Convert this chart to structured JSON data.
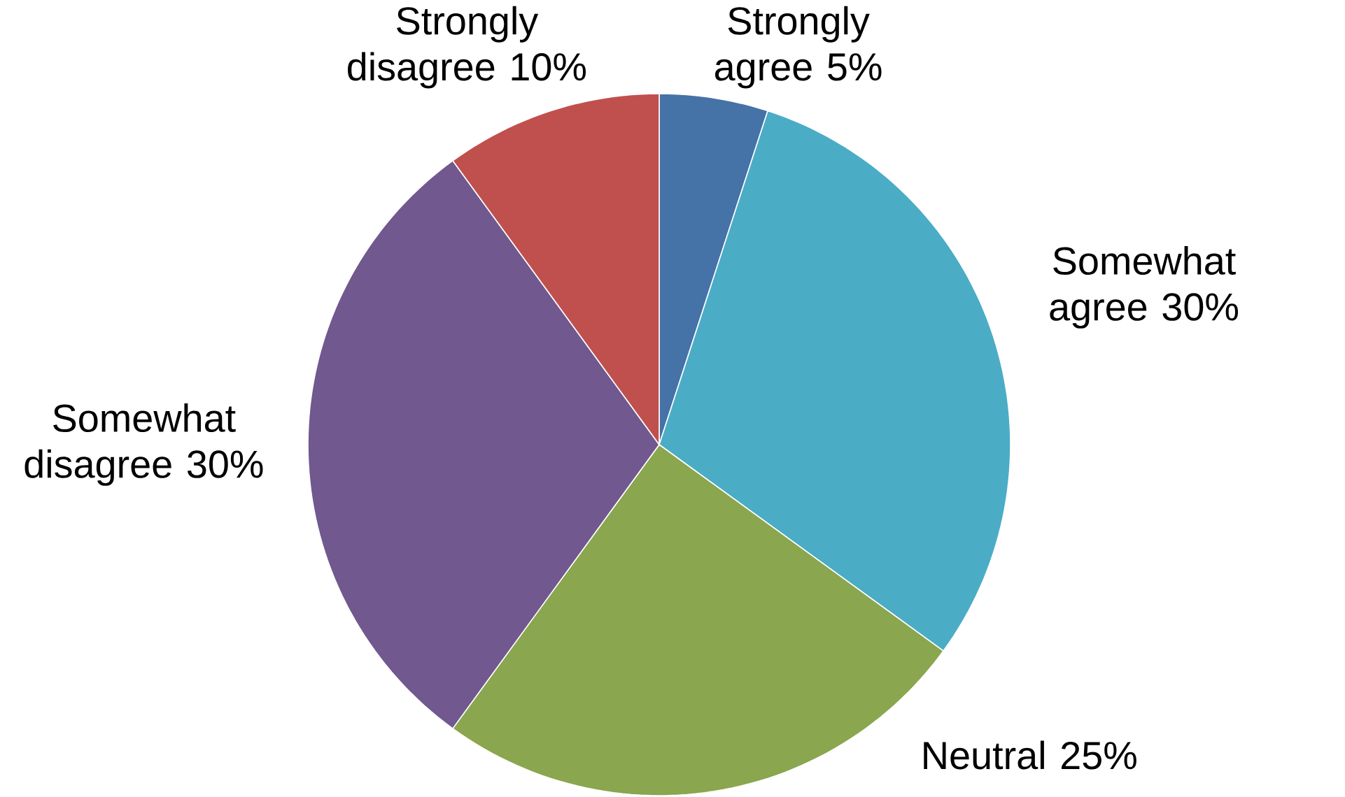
{
  "chart_data": {
    "type": "pie",
    "categories": [
      "Strongly agree",
      "Somewhat agree",
      "Neutral",
      "Somewhat disagree",
      "Strongly disagree"
    ],
    "values": [
      5,
      30,
      25,
      30,
      10
    ],
    "value_labels": [
      "5%",
      "30%",
      "25%",
      "30%",
      "10%"
    ],
    "colors": [
      "#4572a7",
      "#4bacc6",
      "#8aa64e",
      "#71588f",
      "#c0504d"
    ]
  }
}
